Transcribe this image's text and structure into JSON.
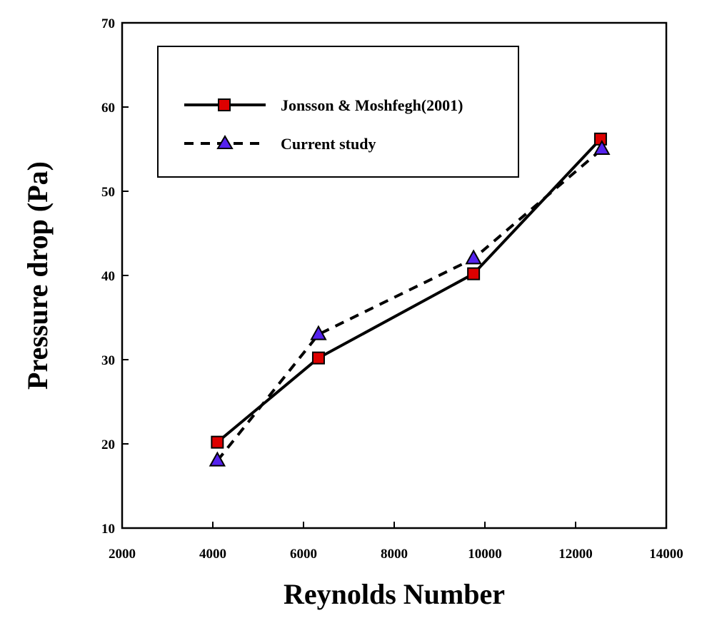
{
  "chart_data": {
    "type": "line",
    "xlabel": "Reynolds Number",
    "ylabel": "Pressure drop (Pa)",
    "xlim": [
      2000,
      14000
    ],
    "ylim": [
      10,
      70
    ],
    "xticks": [
      2000,
      4000,
      6000,
      8000,
      10000,
      12000,
      14000
    ],
    "yticks": [
      10,
      20,
      30,
      40,
      50,
      60,
      70
    ],
    "grid": false,
    "legend_position": "top-left",
    "series": [
      {
        "name": "Jonsson & Moshfegh(2001)",
        "line_style": "solid",
        "marker": "square",
        "marker_color": "#dd0000",
        "x": [
          4100,
          6330,
          9750,
          12550
        ],
        "y": [
          20.2,
          30.2,
          40.2,
          56.2
        ]
      },
      {
        "name": "Current study",
        "line_style": "dashed",
        "marker": "triangle",
        "marker_color": "#5522ee",
        "x": [
          4100,
          6330,
          9750,
          12580
        ],
        "y": [
          18.0,
          33.0,
          42.0,
          55.0
        ]
      }
    ]
  }
}
